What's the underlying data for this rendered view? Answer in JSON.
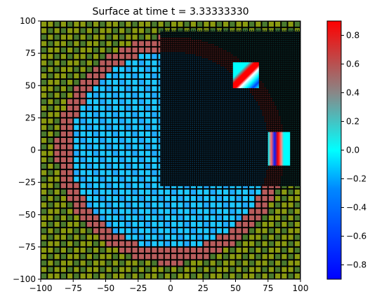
{
  "chart_data": {
    "type": "heatmap",
    "title": "Surface at time t =     3.33333330",
    "xlabel": "",
    "ylabel": "",
    "xlim": [
      -100,
      100
    ],
    "ylim": [
      -100,
      100
    ],
    "xticks": [
      "−100",
      "−75",
      "−50",
      "−25",
      "0",
      "25",
      "50",
      "75",
      "100"
    ],
    "yticks": [
      "100",
      "75",
      "50",
      "25",
      "0",
      "−25",
      "−50",
      "−75",
      "−100"
    ],
    "grid": false,
    "colorbar": {
      "range": [
        -0.9,
        0.9
      ],
      "ticks": [
        "0.8",
        "0.6",
        "0.4",
        "0.2",
        "0.0",
        "−0.2",
        "−0.4",
        "−0.6",
        "−0.8"
      ],
      "colors": [
        "#0000ff",
        "#00ffff",
        "#ff0000"
      ]
    },
    "surface": {
      "background_level": 0.02,
      "ring_center": [
        0,
        0
      ],
      "ring_radius": 82,
      "ring_width": 6,
      "ring_level": 0.45,
      "inner_level": -0.2,
      "land_color": "#4a7a2e",
      "land_color_alt": "#8a9a10"
    },
    "refined_region": {
      "x": [
        -8,
        100
      ],
      "y": [
        -28,
        92
      ],
      "level": 0.0
    },
    "insets": [
      {
        "name": "upper-right-refinement",
        "x": [
          48,
          68
        ],
        "y": [
          48,
          68
        ]
      },
      {
        "name": "right-refinement",
        "x": [
          75,
          92
        ],
        "y": [
          -12,
          14
        ]
      }
    ]
  }
}
